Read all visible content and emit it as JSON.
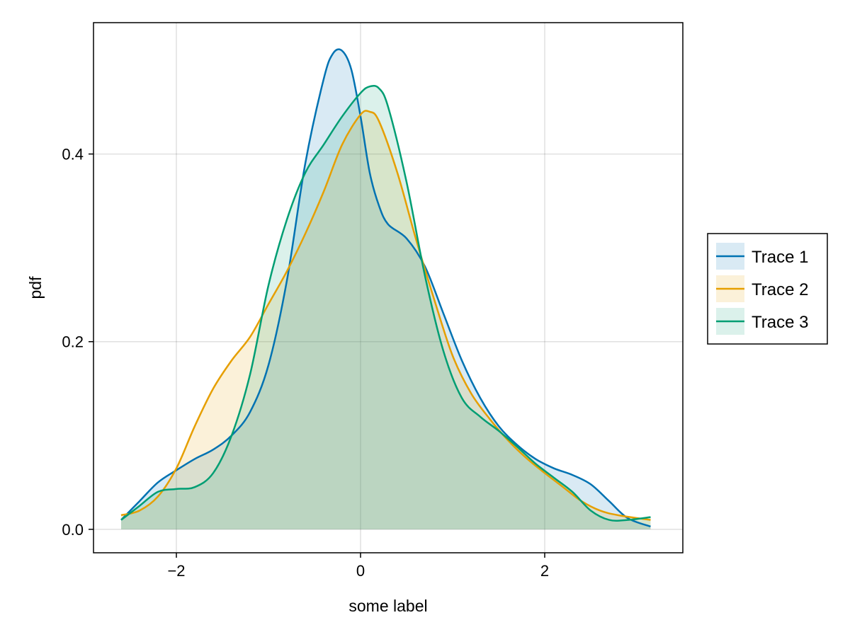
{
  "chart_data": {
    "type": "area",
    "title": "",
    "xlabel": "some label",
    "ylabel": "pdf",
    "xlim": [
      -2.9,
      3.5
    ],
    "ylim": [
      -0.025,
      0.54
    ],
    "xticks": [
      -2,
      0,
      2
    ],
    "xtick_labels": [
      "−2",
      "0",
      "2"
    ],
    "yticks": [
      0.0,
      0.2,
      0.4
    ],
    "ytick_labels": [
      "0.0",
      "0.2",
      "0.4"
    ],
    "grid": true,
    "legend_position": "right",
    "series": [
      {
        "name": "Trace 1",
        "color": "#0072b2",
        "fill": "rgba(0,114,178,0.15)",
        "x": [
          -2.6,
          -2.4,
          -2.2,
          -2.0,
          -1.8,
          -1.6,
          -1.4,
          -1.2,
          -1.0,
          -0.8,
          -0.6,
          -0.4,
          -0.3,
          -0.2,
          -0.1,
          0.0,
          0.1,
          0.2,
          0.3,
          0.5,
          0.7,
          0.9,
          1.1,
          1.3,
          1.5,
          1.7,
          1.9,
          2.1,
          2.3,
          2.5,
          2.7,
          2.9,
          3.15
        ],
        "y": [
          0.01,
          0.03,
          0.05,
          0.063,
          0.075,
          0.085,
          0.1,
          0.125,
          0.175,
          0.265,
          0.39,
          0.48,
          0.507,
          0.51,
          0.49,
          0.44,
          0.38,
          0.345,
          0.325,
          0.31,
          0.28,
          0.23,
          0.18,
          0.14,
          0.11,
          0.09,
          0.075,
          0.065,
          0.058,
          0.048,
          0.03,
          0.012,
          0.003
        ]
      },
      {
        "name": "Trace 2",
        "color": "#e69f00",
        "fill": "rgba(230,159,0,0.15)",
        "x": [
          -2.6,
          -2.4,
          -2.2,
          -2.0,
          -1.8,
          -1.6,
          -1.4,
          -1.2,
          -1.0,
          -0.8,
          -0.6,
          -0.4,
          -0.2,
          0.0,
          0.1,
          0.2,
          0.4,
          0.6,
          0.8,
          1.0,
          1.2,
          1.4,
          1.6,
          1.8,
          2.0,
          2.2,
          2.4,
          2.6,
          2.8,
          3.15
        ],
        "y": [
          0.015,
          0.02,
          0.035,
          0.065,
          0.11,
          0.15,
          0.18,
          0.205,
          0.24,
          0.275,
          0.315,
          0.36,
          0.41,
          0.442,
          0.445,
          0.435,
          0.38,
          0.31,
          0.245,
          0.185,
          0.145,
          0.118,
          0.095,
          0.076,
          0.06,
          0.045,
          0.03,
          0.02,
          0.015,
          0.01
        ]
      },
      {
        "name": "Trace 3",
        "color": "#009e73",
        "fill": "rgba(0,158,115,0.14)",
        "x": [
          -2.6,
          -2.4,
          -2.2,
          -2.0,
          -1.8,
          -1.6,
          -1.4,
          -1.2,
          -1.0,
          -0.8,
          -0.6,
          -0.4,
          -0.2,
          0.0,
          0.1,
          0.2,
          0.3,
          0.5,
          0.7,
          0.9,
          1.1,
          1.3,
          1.5,
          1.7,
          1.9,
          2.1,
          2.3,
          2.5,
          2.7,
          2.9,
          3.15
        ],
        "y": [
          0.01,
          0.025,
          0.04,
          0.043,
          0.045,
          0.06,
          0.1,
          0.165,
          0.26,
          0.33,
          0.38,
          0.41,
          0.44,
          0.465,
          0.472,
          0.47,
          0.45,
          0.37,
          0.27,
          0.19,
          0.14,
          0.12,
          0.105,
          0.088,
          0.07,
          0.055,
          0.04,
          0.02,
          0.01,
          0.01,
          0.013
        ]
      }
    ]
  }
}
